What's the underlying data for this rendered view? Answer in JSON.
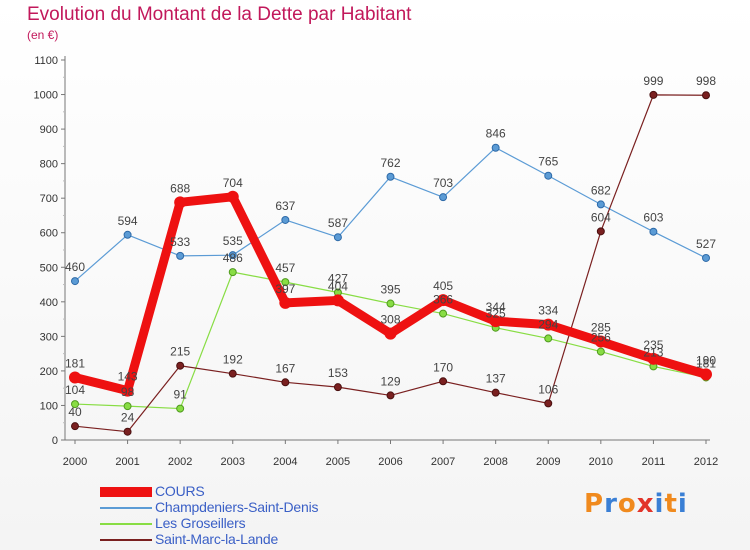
{
  "title": "Evolution du Montant de la Dette par Habitant",
  "unit": "(en €)",
  "logo": {
    "text": "Proxiti",
    "letter_colors": [
      "#f08a1e",
      "#3a7fd5",
      "#f08a1e",
      "#e2342a",
      "#3a7fd5",
      "#f08a1e",
      "#3a7fd5"
    ]
  },
  "chart_data": {
    "type": "line",
    "title": "Evolution du Montant de la Dette par Habitant",
    "ylabel": "(en €)",
    "x": [
      "2000",
      "2001",
      "2002",
      "2003",
      "2004",
      "2005",
      "2006",
      "2007",
      "2008",
      "2009",
      "2010",
      "2011",
      "2012"
    ],
    "ylim": [
      0,
      1100
    ],
    "yticks": [
      0,
      100,
      200,
      300,
      400,
      500,
      600,
      700,
      800,
      900,
      1000,
      1100
    ],
    "grid": false,
    "legend_position": "bottom-left",
    "series": [
      {
        "name": "COURS",
        "color": "#ee1111",
        "values": [
          181,
          143,
          688,
          704,
          397,
          404,
          308,
          405,
          344,
          334,
          285,
          235,
          190
        ]
      },
      {
        "name": "Champdeniers-Saint-Denis",
        "color": "#5b9bd5",
        "values": [
          460,
          594,
          533,
          535,
          637,
          587,
          762,
          703,
          846,
          765,
          682,
          603,
          527
        ]
      },
      {
        "name": "Les Groseillers",
        "color": "#88dd44",
        "values": [
          104,
          98,
          91,
          486,
          457,
          427,
          395,
          366,
          325,
          294,
          256,
          213,
          181
        ]
      },
      {
        "name": "Saint-Marc-la-Lande",
        "color": "#7a2020",
        "values": [
          40,
          24,
          215,
          192,
          167,
          153,
          129,
          170,
          137,
          106,
          604,
          999,
          998
        ]
      }
    ]
  }
}
